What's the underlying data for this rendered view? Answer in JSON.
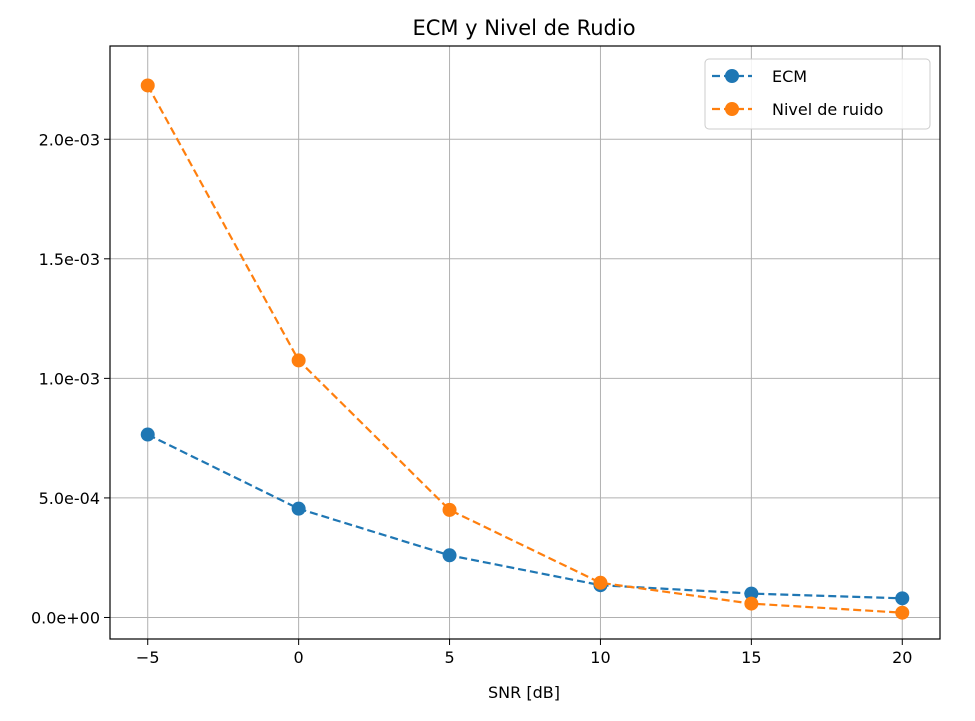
{
  "chart_data": {
    "type": "line",
    "title": "ECM y Nivel de Rudio",
    "xlabel": "SNR [dB]",
    "ylabel": "",
    "x": [
      -5,
      0,
      5,
      10,
      15,
      20
    ],
    "xlim": [
      -6.25,
      21.25
    ],
    "ylim": [
      -9e-05,
      0.00239
    ],
    "x_ticks": [
      -5,
      0,
      5,
      10,
      15,
      20
    ],
    "x_tick_labels": [
      "−5",
      "0",
      "5",
      "10",
      "15",
      "20"
    ],
    "y_ticks": [
      0,
      0.0005,
      0.001,
      0.0015,
      0.002
    ],
    "y_tick_labels": [
      "0.0e+00",
      "5.0e-04",
      "1.0e-03",
      "1.5e-03",
      "2.0e-03"
    ],
    "grid": true,
    "legend_position": "top-right",
    "series": [
      {
        "name": "ECM",
        "color": "#1f77b4",
        "line_style": "dashed",
        "marker": "circle",
        "values": [
          0.000765,
          0.000455,
          0.00026,
          0.000135,
          0.0001,
          8e-05
        ]
      },
      {
        "name": "Nivel de ruido",
        "color": "#ff7f0e",
        "line_style": "dashed",
        "marker": "circle",
        "values": [
          0.002225,
          0.001075,
          0.00045,
          0.000145,
          5.8e-05,
          2e-05
        ]
      }
    ]
  }
}
